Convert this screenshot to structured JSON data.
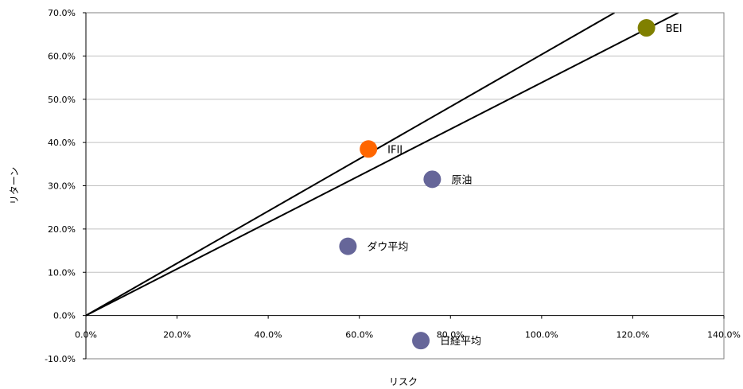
{
  "chart_data": {
    "type": "scatter",
    "title": "",
    "xlabel": "リスク",
    "ylabel": "リターン",
    "xlim": [
      0,
      140
    ],
    "ylim": [
      -10,
      70
    ],
    "x_ticks": [
      "0.0%",
      "20.0%",
      "40.0%",
      "60.0%",
      "80.0%",
      "100.0%",
      "120.0%",
      "140.0%"
    ],
    "y_ticks": [
      "-10.0%",
      "0.0%",
      "10.0%",
      "20.0%",
      "30.0%",
      "40.0%",
      "50.0%",
      "60.0%",
      "70.0%"
    ],
    "grid": "horizontal",
    "points": [
      {
        "label": "BEI",
        "x": 123.0,
        "y": 66.5,
        "color": "#808000"
      },
      {
        "label": "IFIJ",
        "x": 62.0,
        "y": 38.5,
        "color": "#ff6600"
      },
      {
        "label": "原油",
        "x": 76.0,
        "y": 31.5,
        "color": "#666699"
      },
      {
        "label": "ダウ平均",
        "x": 57.5,
        "y": 16.0,
        "color": "#666699"
      },
      {
        "label": "日経平均",
        "x": 73.5,
        "y": -5.8,
        "color": "#666699"
      }
    ],
    "lines": [
      {
        "x": [
          0,
          116
        ],
        "y": [
          0,
          70
        ]
      },
      {
        "x": [
          0,
          130
        ],
        "y": [
          0,
          70
        ]
      }
    ]
  }
}
